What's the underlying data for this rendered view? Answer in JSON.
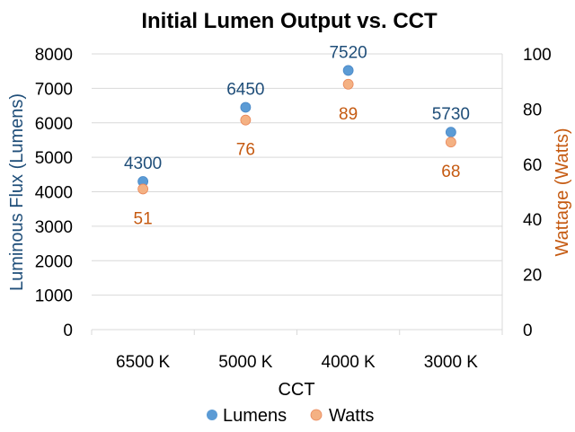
{
  "chart_data": {
    "type": "scatter",
    "title": "Initial Lumen Output vs. CCT",
    "xlabel": "CCT",
    "ylabel": "Luminous Flux (Lumens)",
    "y2label": "Wattage (Watts)",
    "categories": [
      "6500 K",
      "5000 K",
      "4000 K",
      "3000 K"
    ],
    "ylim": [
      0,
      8000
    ],
    "y2lim": [
      0,
      100
    ],
    "yticks": [
      0,
      1000,
      2000,
      3000,
      4000,
      5000,
      6000,
      7000,
      8000
    ],
    "y2ticks": [
      0,
      20,
      40,
      60,
      80,
      100
    ],
    "grid": true,
    "legend": "bottom",
    "series": [
      {
        "name": "Lumens",
        "axis": "left",
        "values": [
          4300,
          6450,
          7520,
          5730
        ],
        "labels": [
          "4300",
          "6450",
          "7520",
          "5730"
        ],
        "color": "#5B9BD5",
        "label_color": "#1F4E79"
      },
      {
        "name": "Watts",
        "axis": "right",
        "values": [
          51,
          76,
          89,
          68
        ],
        "labels": [
          "51",
          "76",
          "89",
          "68"
        ],
        "color": "#F4B183",
        "label_color": "#C55A11"
      }
    ],
    "left_axis_color": "#1F4E79",
    "right_axis_color": "#C55A11"
  }
}
